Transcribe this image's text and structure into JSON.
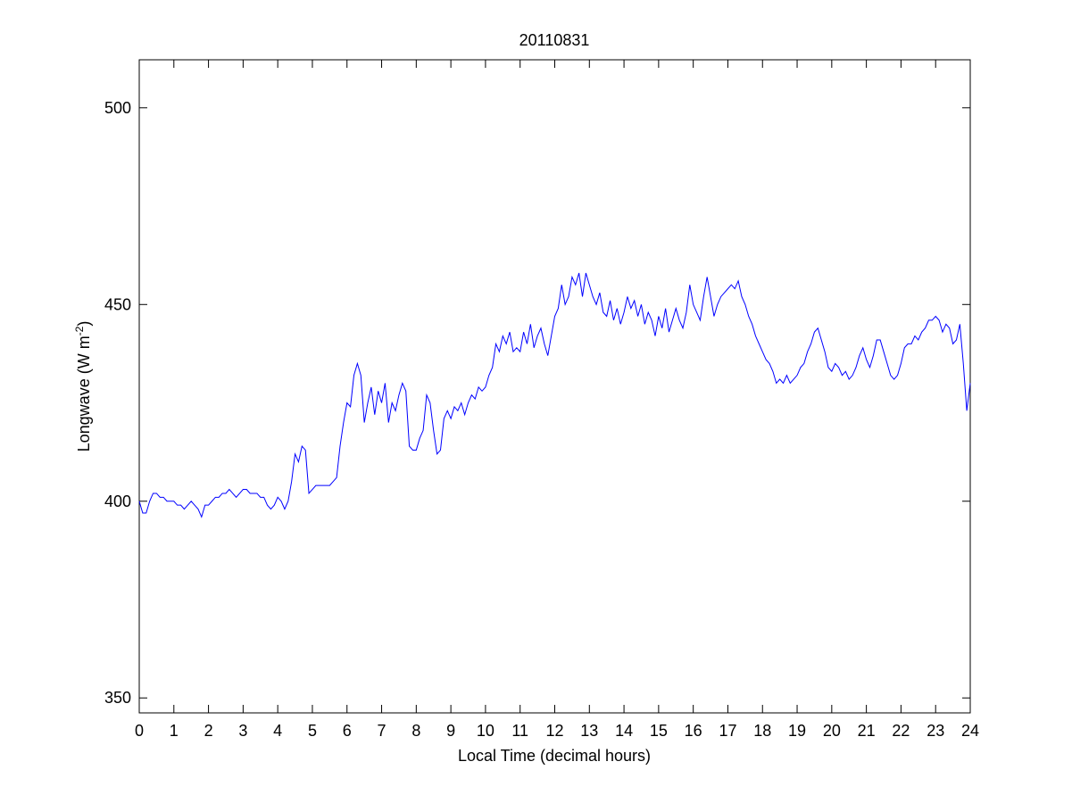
{
  "chart_data": {
    "type": "line",
    "title": "20110831",
    "xlabel": "Local Time (decimal hours)",
    "ylabel": [
      "Longwave (W m",
      "-2",
      ")"
    ],
    "color": "#0000ff",
    "xlim": [
      0,
      24
    ],
    "xticks": [
      0,
      1,
      2,
      3,
      4,
      5,
      6,
      7,
      8,
      9,
      10,
      11,
      12,
      13,
      14,
      15,
      16,
      17,
      18,
      19,
      20,
      21,
      22,
      23,
      24
    ],
    "ylim": [
      346.2,
      512.2
    ],
    "yticks": [
      350,
      400,
      450,
      500
    ],
    "x": [
      0,
      0.1,
      0.2,
      0.3,
      0.4,
      0.5,
      0.6,
      0.7,
      0.8,
      0.9,
      1,
      1.1,
      1.2,
      1.3,
      1.4,
      1.5,
      1.6,
      1.7,
      1.8,
      1.9,
      2,
      2.1,
      2.2,
      2.3,
      2.4,
      2.5,
      2.6,
      2.7,
      2.8,
      2.9,
      3,
      3.1,
      3.2,
      3.3,
      3.4,
      3.5,
      3.6,
      3.7,
      3.8,
      3.9,
      4,
      4.1,
      4.2,
      4.3,
      4.4,
      4.5,
      4.6,
      4.7,
      4.8,
      4.9,
      5,
      5.1,
      5.2,
      5.3,
      5.4,
      5.5,
      5.6,
      5.7,
      5.8,
      5.9,
      6,
      6.1,
      6.2,
      6.3,
      6.4,
      6.5,
      6.6,
      6.7,
      6.8,
      6.9,
      7,
      7.1,
      7.2,
      7.3,
      7.4,
      7.5,
      7.6,
      7.7,
      7.8,
      7.9,
      8,
      8.1,
      8.2,
      8.3,
      8.4,
      8.5,
      8.6,
      8.7,
      8.8,
      8.9,
      9,
      9.1,
      9.2,
      9.3,
      9.4,
      9.5,
      9.6,
      9.7,
      9.8,
      9.9,
      10,
      10.1,
      10.2,
      10.3,
      10.4,
      10.5,
      10.6,
      10.7,
      10.8,
      10.9,
      11,
      11.1,
      11.2,
      11.3,
      11.4,
      11.5,
      11.6,
      11.7,
      11.8,
      11.9,
      12,
      12.1,
      12.2,
      12.3,
      12.4,
      12.5,
      12.6,
      12.7,
      12.8,
      12.9,
      13,
      13.1,
      13.2,
      13.3,
      13.4,
      13.5,
      13.6,
      13.7,
      13.8,
      13.9,
      14,
      14.1,
      14.2,
      14.3,
      14.4,
      14.5,
      14.6,
      14.7,
      14.8,
      14.9,
      15,
      15.1,
      15.2,
      15.3,
      15.4,
      15.5,
      15.6,
      15.7,
      15.8,
      15.9,
      16,
      16.1,
      16.2,
      16.3,
      16.4,
      16.5,
      16.6,
      16.7,
      16.8,
      16.9,
      17,
      17.1,
      17.2,
      17.3,
      17.4,
      17.5,
      17.6,
      17.7,
      17.8,
      17.9,
      18,
      18.1,
      18.2,
      18.3,
      18.4,
      18.5,
      18.6,
      18.7,
      18.8,
      18.9,
      19,
      19.1,
      19.2,
      19.3,
      19.4,
      19.5,
      19.6,
      19.7,
      19.8,
      19.9,
      20,
      20.1,
      20.2,
      20.3,
      20.4,
      20.5,
      20.6,
      20.7,
      20.8,
      20.9,
      21,
      21.1,
      21.2,
      21.3,
      21.4,
      21.5,
      21.6,
      21.7,
      21.8,
      21.9,
      22,
      22.1,
      22.2,
      22.3,
      22.4,
      22.5,
      22.6,
      22.7,
      22.8,
      22.9,
      23,
      23.1,
      23.2,
      23.3,
      23.4,
      23.5,
      23.6,
      23.7,
      23.8,
      23.9,
      24
    ],
    "values": [
      400,
      397,
      397,
      400,
      402,
      402,
      401,
      401,
      400,
      400,
      400,
      399,
      399,
      398,
      399,
      400,
      399,
      398,
      396,
      399,
      399,
      400,
      401,
      401,
      402,
      402,
      403,
      402,
      401,
      402,
      403,
      403,
      402,
      402,
      402,
      401,
      401,
      399,
      398,
      399,
      401,
      400,
      398,
      400,
      405,
      412,
      410,
      414,
      413,
      402,
      403,
      404,
      404,
      404,
      404,
      404,
      405,
      406,
      414,
      420,
      425,
      424,
      432,
      435,
      432,
      420,
      425,
      429,
      422,
      428,
      425,
      430,
      420,
      425,
      423,
      427,
      430,
      428,
      414,
      413,
      413,
      416,
      418,
      427,
      425,
      418,
      412,
      413,
      421,
      423,
      421,
      424,
      423,
      425,
      422,
      425,
      427,
      426,
      429,
      428,
      429,
      432,
      434,
      440,
      438,
      442,
      440,
      443,
      438,
      439,
      438,
      443,
      440,
      445,
      439,
      442,
      444,
      440,
      437,
      442,
      447,
      449,
      455,
      450,
      452,
      457,
      455,
      458,
      452,
      458,
      455,
      452,
      450,
      453,
      448,
      447,
      451,
      446,
      449,
      445,
      448,
      452,
      449,
      451,
      447,
      450,
      445,
      448,
      446,
      442,
      447,
      444,
      449,
      443,
      446,
      449,
      446,
      444,
      448,
      455,
      450,
      448,
      446,
      452,
      457,
      452,
      447,
      450,
      452,
      453,
      454,
      455,
      454,
      456,
      452,
      450,
      447,
      445,
      442,
      440,
      438,
      436,
      435,
      433,
      430,
      431,
      430,
      432,
      430,
      431,
      432,
      434,
      435,
      438,
      440,
      443,
      444,
      441,
      438,
      434,
      433,
      435,
      434,
      432,
      433,
      431,
      432,
      434,
      437,
      439,
      436,
      434,
      437,
      441,
      441,
      438,
      435,
      432,
      431,
      432,
      435,
      439,
      440,
      440,
      442,
      441,
      443,
      444,
      446,
      446,
      447,
      446,
      443,
      445,
      444,
      440,
      441,
      445,
      435,
      423,
      430
    ]
  }
}
